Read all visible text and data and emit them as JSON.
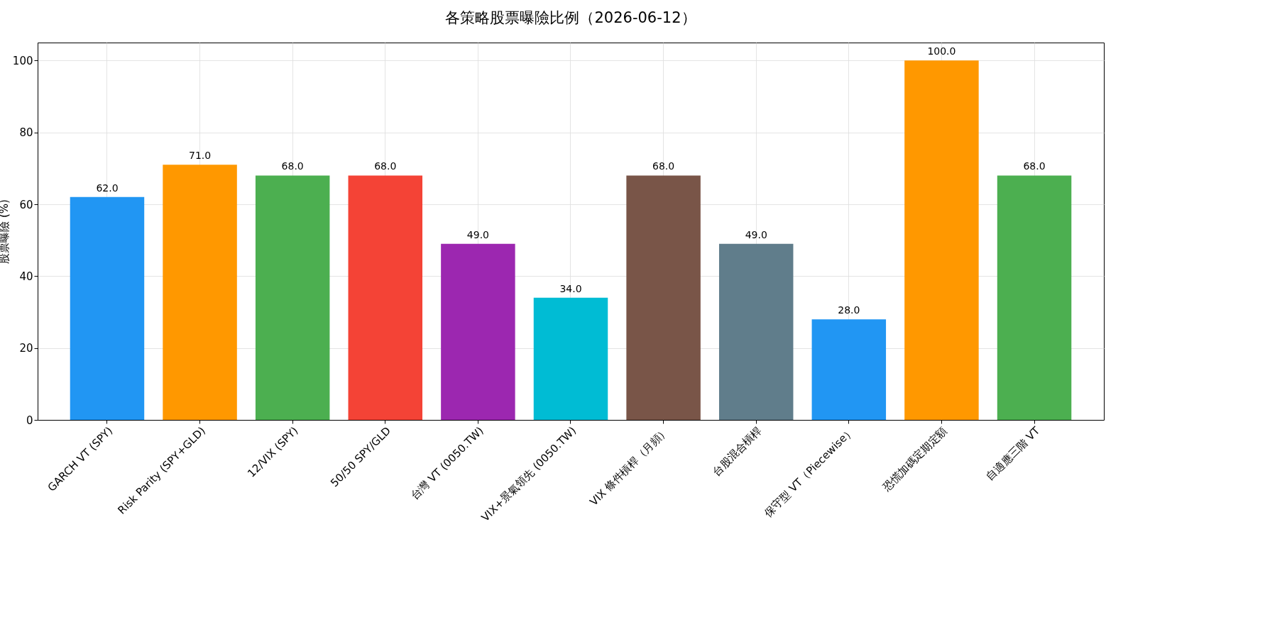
{
  "chart_data": {
    "type": "bar",
    "title": "各策略股票曝險比例（2026-06-12）",
    "ylabel": "股票曝險 (%)",
    "categories": [
      "GARCH VT (SPY)",
      "Risk Parity (SPY+GLD)",
      "12/VIX (SPY)",
      "50/50 SPY/GLD",
      "台灣 VT (0050.TW)",
      "VIX+景氣領先 (0050.TW)",
      "VIX 條件槓桿（月頻）",
      "台股混合槓桿",
      "保守型 VT（Piecewise）",
      "恐慌加碼定期定額",
      "自適應三階 VT"
    ],
    "values": [
      62,
      71,
      68,
      68,
      49,
      34,
      68,
      49,
      28,
      100,
      68
    ],
    "value_labels": [
      "62.0",
      "71.0",
      "68.0",
      "68.0",
      "49.0",
      "34.0",
      "68.0",
      "49.0",
      "28.0",
      "100.0",
      "68.0"
    ],
    "colors": [
      "#2196f3",
      "#ff9800",
      "#4caf50",
      "#f44336",
      "#9c27b0",
      "#00bcd4",
      "#795548",
      "#607d8b",
      "#2196f3",
      "#ff9800",
      "#4caf50"
    ],
    "ylim": [
      0,
      105
    ],
    "yticks": [
      0,
      20,
      40,
      60,
      80,
      100
    ],
    "grid": true
  }
}
